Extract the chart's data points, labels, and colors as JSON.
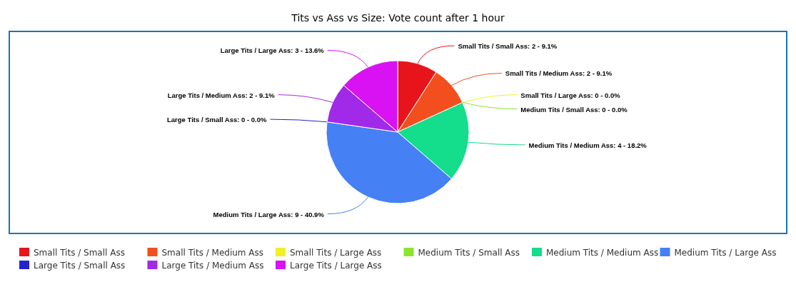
{
  "chart_data": {
    "type": "pie",
    "title": "Tits vs Ass vs Size: Vote count after 1 hour",
    "categories": [
      "Small Tits / Small Ass",
      "Small Tits / Medium Ass",
      "Small Tits / Large Ass",
      "Medium Tits / Small Ass",
      "Medium Tits / Medium Ass",
      "Medium Tits / Large Ass",
      "Large Tits / Small Ass",
      "Large Tits / Medium Ass",
      "Large Tits / Large Ass"
    ],
    "values": [
      2,
      2,
      0,
      0,
      4,
      9,
      0,
      2,
      3
    ],
    "colors": [
      "#e8141b",
      "#f34f1e",
      "#f0f02a",
      "#8be530",
      "#14dd8c",
      "#4580f5",
      "#2222d0",
      "#a02ae8",
      "#d812f2"
    ],
    "value_labels": [
      "Small Tits / Small Ass: 2 - 9.1%",
      "Small Tits / Medium Ass: 2 - 9.1%",
      "Small Tits / Large Ass: 0 - 0.0%",
      "Medium Tits / Small Ass: 0 - 0.0%",
      "Medium Tits / Medium Ass: 4 - 18.2%",
      "Medium Tits / Large Ass: 9 - 40.9%",
      "Large Tits / Small Ass: 0 - 0.0%",
      "Large Tits / Medium Ass: 2 - 9.1%",
      "Large Tits / Large Ass: 3 - 13.6%"
    ],
    "legend": "bottom"
  }
}
